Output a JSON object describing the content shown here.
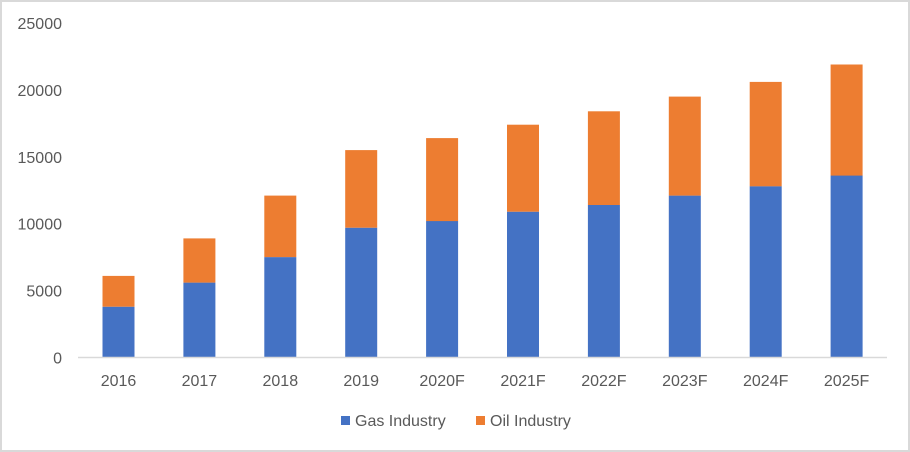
{
  "chart_data": {
    "type": "bar",
    "stacked": true,
    "title": "",
    "xlabel": "",
    "ylabel": "",
    "categories": [
      "2016",
      "2017",
      "2018",
      "2019",
      "2020F",
      "2021F",
      "2022F",
      "2023F",
      "2024F",
      "2025F"
    ],
    "series": [
      {
        "name": "Gas Industry",
        "color": "#4472C4",
        "values": [
          3800,
          5600,
          7500,
          9700,
          10200,
          10900,
          11400,
          12100,
          12800,
          13600
        ]
      },
      {
        "name": "Oil Industry",
        "color": "#ED7D31",
        "values": [
          2300,
          3300,
          4600,
          5800,
          6200,
          6500,
          7000,
          7400,
          7800,
          8300
        ]
      }
    ],
    "ylim": [
      0,
      25000
    ],
    "yticks": [
      "0",
      "5000",
      "10000",
      "15000",
      "20000",
      "25000"
    ],
    "grid": false,
    "legend": "bottom-center",
    "axis_color": "#D9D9D9",
    "text_color": "#595959"
  }
}
